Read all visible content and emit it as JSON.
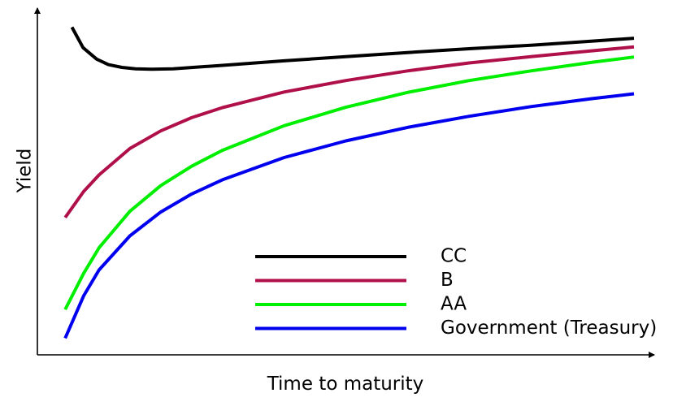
{
  "chart_data": {
    "type": "line",
    "title": "",
    "xlabel": "Time to maturity",
    "ylabel": "Yield",
    "xlim": [
      0,
      10
    ],
    "ylim": [
      0,
      10
    ],
    "grid": false,
    "legend_position": "bottom-right",
    "ticks": "none",
    "series": [
      {
        "name": "CC",
        "color": "#000000",
        "x": [
          0.56,
          0.74,
          0.96,
          1.15,
          1.37,
          1.59,
          1.85,
          2.2,
          3.0,
          4.0,
          5.0,
          6.0,
          7.0,
          8.0,
          9.0,
          9.67
        ],
        "y": [
          9.45,
          8.86,
          8.53,
          8.37,
          8.29,
          8.25,
          8.24,
          8.25,
          8.35,
          8.48,
          8.6,
          8.72,
          8.83,
          8.93,
          9.05,
          9.13
        ]
      },
      {
        "name": "B",
        "color": "#b0104a",
        "x": [
          0.45,
          0.75,
          1.0,
          1.5,
          2.0,
          2.5,
          3.0,
          4.0,
          5.0,
          6.0,
          7.0,
          8.0,
          9.0,
          9.67
        ],
        "y": [
          3.96,
          4.71,
          5.19,
          5.95,
          6.46,
          6.84,
          7.13,
          7.58,
          7.91,
          8.19,
          8.42,
          8.6,
          8.77,
          8.88
        ]
      },
      {
        "name": "AA",
        "color": "#00ee00",
        "x": [
          0.45,
          0.75,
          1.0,
          1.5,
          2.0,
          2.5,
          3.0,
          4.0,
          5.0,
          6.0,
          7.0,
          8.0,
          9.0,
          9.67
        ],
        "y": [
          1.31,
          2.35,
          3.09,
          4.14,
          4.88,
          5.44,
          5.9,
          6.61,
          7.14,
          7.57,
          7.91,
          8.19,
          8.44,
          8.59
        ]
      },
      {
        "name": "Government (Treasury)",
        "color": "#0000ee",
        "x": [
          0.45,
          0.75,
          1.0,
          1.5,
          2.0,
          2.5,
          3.0,
          4.0,
          5.0,
          6.0,
          7.0,
          8.0,
          9.0,
          9.67
        ],
        "y": [
          0.48,
          1.7,
          2.45,
          3.43,
          4.12,
          4.64,
          5.05,
          5.69,
          6.17,
          6.56,
          6.88,
          7.16,
          7.39,
          7.53
        ]
      }
    ]
  }
}
